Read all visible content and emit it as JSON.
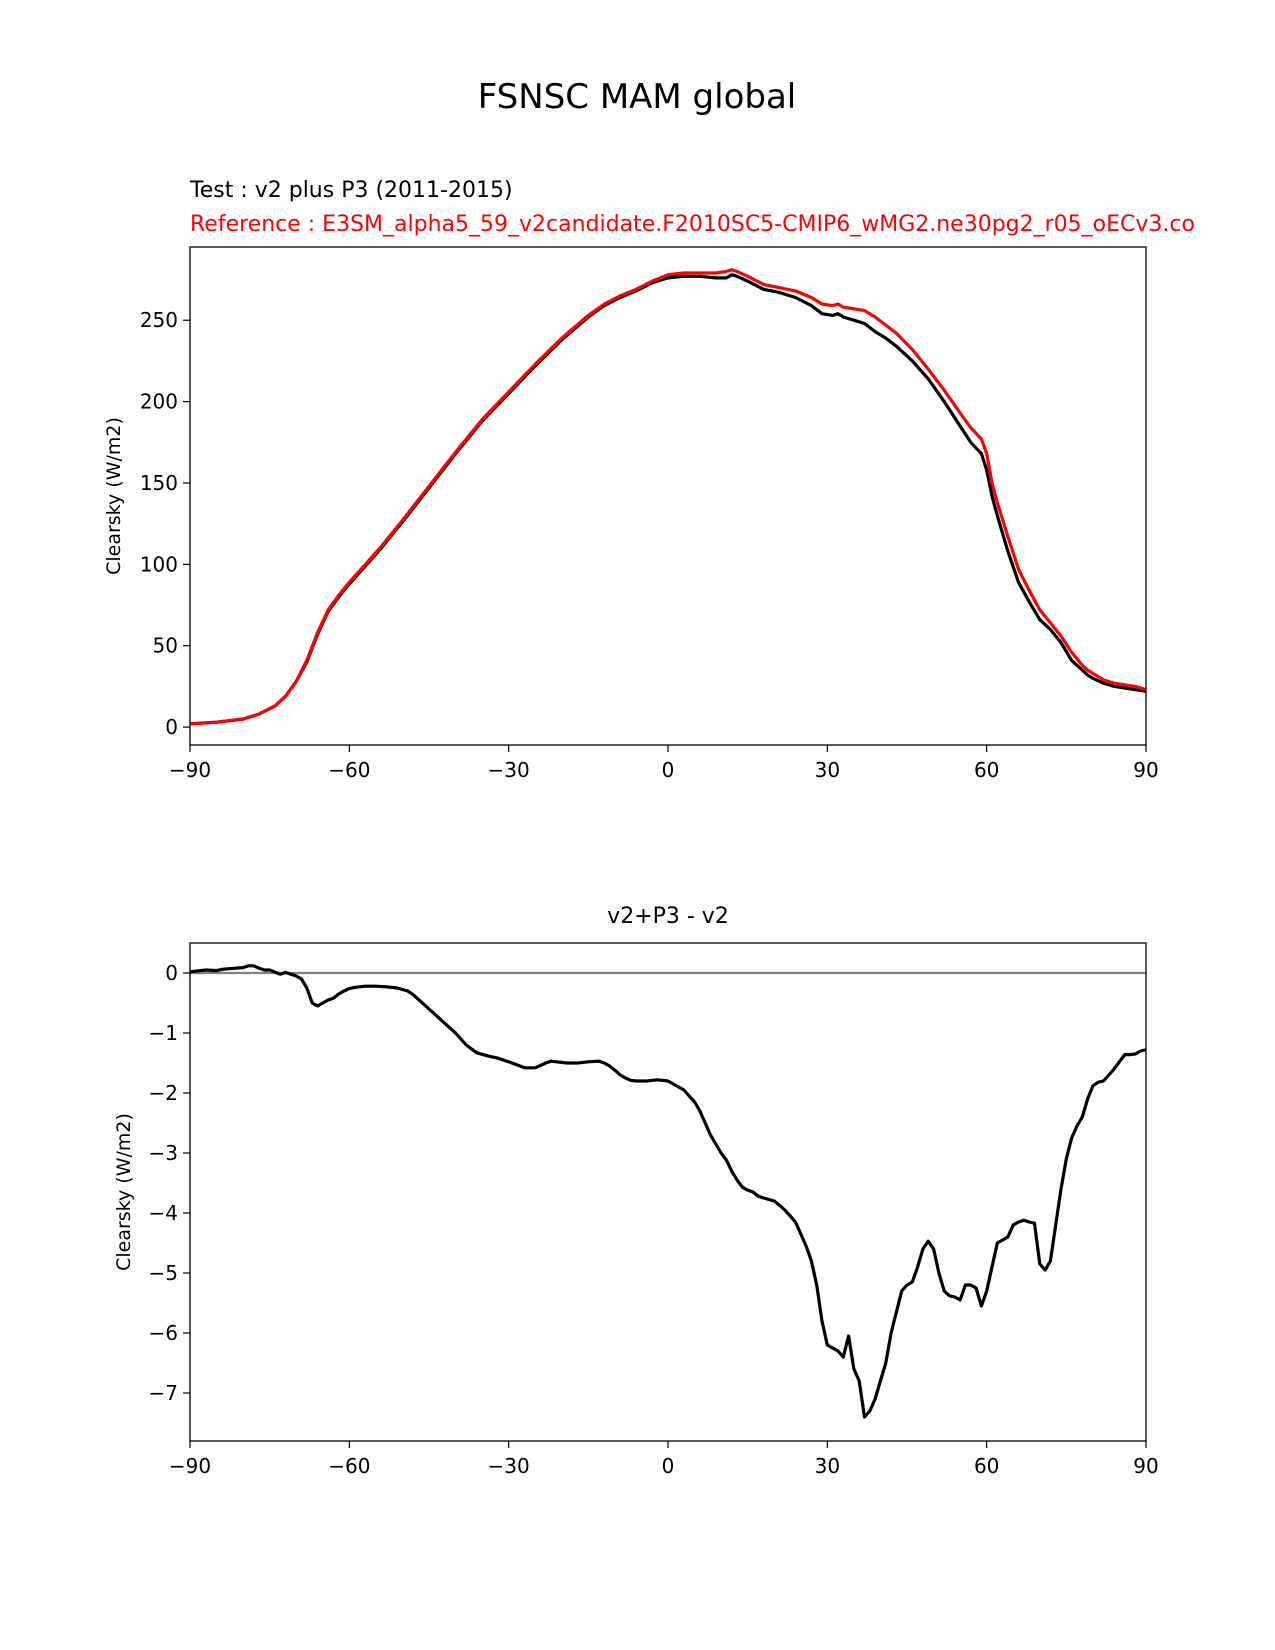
{
  "figure": {
    "suptitle": "FSNSC MAM global",
    "test_label": "Test : v2 plus P3 (2011-2015)",
    "reference_label": "Reference : E3SM_alpha5_59_v2candidate.F2010SC5-CMIP6_wMG2.ne30pg2_r05_oECv3.co",
    "colors": {
      "test": "#000000",
      "reference": "#ff0000",
      "zero_line": "#808080"
    }
  },
  "chart_data": [
    {
      "type": "line",
      "title": "",
      "xlabel": "",
      "ylabel": "Clearsky (W/m2)",
      "xlim": [
        -90,
        90
      ],
      "ylim": [
        -11,
        295
      ],
      "xticks": [
        -90,
        -60,
        -30,
        0,
        30,
        60,
        90
      ],
      "yticks": [
        0,
        50,
        100,
        150,
        200,
        250
      ],
      "x": [
        -90,
        -85,
        -80,
        -77,
        -74,
        -72,
        -70,
        -68,
        -66,
        -64,
        -62,
        -60,
        -57,
        -54,
        -50,
        -45,
        -40,
        -35,
        -30,
        -25,
        -20,
        -15,
        -12,
        -9,
        -6,
        -3,
        0,
        3,
        6,
        9,
        11,
        12,
        13,
        15,
        18,
        21,
        24,
        27,
        29,
        31,
        32,
        33,
        35,
        37,
        39,
        41,
        43,
        46,
        49,
        52,
        55,
        57,
        59,
        60,
        61,
        62,
        64,
        66,
        68,
        70,
        72,
        74,
        76,
        78,
        79,
        80,
        82,
        84,
        86,
        88,
        90
      ],
      "series": [
        {
          "name": "Test",
          "y": [
            2,
            3,
            5,
            8,
            13,
            19,
            28,
            40,
            57,
            71,
            80,
            88,
            99,
            110,
            126,
            147,
            168,
            188,
            205,
            222,
            238,
            252,
            259,
            264,
            268,
            273,
            276,
            277,
            277,
            276,
            276,
            278,
            277,
            274,
            269,
            267,
            264,
            259,
            254,
            253,
            254,
            252,
            250,
            248,
            243,
            239,
            234,
            225,
            214,
            200,
            185,
            175,
            168,
            158,
            142,
            130,
            108,
            89,
            77,
            66,
            60,
            52,
            41,
            35,
            32,
            30,
            27,
            25,
            24,
            23,
            22
          ]
        },
        {
          "name": "Reference",
          "y": [
            2,
            3,
            5,
            8,
            13,
            19,
            28,
            41,
            58,
            72,
            81,
            89,
            100,
            111,
            127,
            148,
            169,
            189,
            206,
            223,
            239,
            253,
            260,
            265,
            269,
            274,
            278,
            279,
            279,
            279,
            280,
            281,
            280,
            277,
            272,
            270,
            268,
            264,
            260,
            259,
            260,
            258,
            257,
            256,
            252,
            247,
            242,
            232,
            220,
            207,
            193,
            184,
            177,
            168,
            150,
            138,
            117,
            97,
            84,
            72,
            64,
            56,
            46,
            38,
            35,
            33,
            29,
            27,
            26,
            25,
            23
          ]
        }
      ]
    },
    {
      "type": "line",
      "title": "v2+P3 - v2",
      "xlabel": "",
      "ylabel": "Clearsky (W/m2)",
      "xlim": [
        -90,
        90
      ],
      "ylim": [
        -7.8,
        0.5
      ],
      "xticks": [
        -90,
        -60,
        -30,
        0,
        30,
        60,
        90
      ],
      "yticks": [
        0,
        -1,
        -2,
        -3,
        -4,
        -5,
        -6,
        -7
      ],
      "zero_line": 0,
      "x": [
        -90,
        -87,
        -85,
        -84,
        -83,
        -80,
        -79,
        -78,
        -77,
        -76,
        -75,
        -73,
        -72,
        -71,
        -70,
        -69,
        -68,
        -67,
        -66,
        -65,
        -64,
        -63,
        -62,
        -61,
        -60,
        -59,
        -58,
        -57,
        -55,
        -53,
        -51,
        -49,
        -48,
        -47,
        -46,
        -45,
        -44,
        -42,
        -40,
        -38,
        -36,
        -34,
        -32,
        -30,
        -27,
        -25,
        -23,
        -22,
        -21,
        -19,
        -18,
        -17,
        -15,
        -13,
        -12,
        -11,
        -10,
        -9,
        -8,
        -7,
        -6,
        -4,
        -2,
        -1,
        0,
        1,
        2,
        3,
        4,
        5,
        6,
        7,
        8,
        9,
        10,
        11,
        12,
        13,
        14,
        15,
        16,
        17,
        18,
        20,
        21,
        22,
        23,
        24,
        25,
        26,
        27,
        28,
        29,
        30,
        31,
        32,
        33,
        34,
        35,
        36,
        37,
        38,
        39,
        40,
        41,
        42,
        43,
        44,
        45,
        46,
        47,
        48,
        49,
        50,
        51,
        52,
        53,
        54,
        55,
        56,
        57,
        58,
        59,
        60,
        61,
        62,
        63,
        64,
        65,
        66,
        67,
        68,
        69,
        70,
        71,
        72,
        73,
        74,
        75,
        76,
        77,
        78,
        79,
        80,
        81,
        82,
        83,
        84,
        85,
        86,
        87,
        88,
        89,
        90
      ],
      "y": [
        0.02,
        0.05,
        0.04,
        0.06,
        0.07,
        0.09,
        0.12,
        0.12,
        0.08,
        0.05,
        0.05,
        -0.02,
        0.01,
        -0.02,
        -0.05,
        -0.1,
        -0.25,
        -0.5,
        -0.55,
        -0.5,
        -0.45,
        -0.42,
        -0.35,
        -0.3,
        -0.26,
        -0.24,
        -0.23,
        -0.22,
        -0.22,
        -0.23,
        -0.25,
        -0.3,
        -0.36,
        -0.44,
        -0.52,
        -0.6,
        -0.68,
        -0.84,
        -1.0,
        -1.2,
        -1.33,
        -1.38,
        -1.42,
        -1.48,
        -1.58,
        -1.58,
        -1.5,
        -1.47,
        -1.48,
        -1.5,
        -1.5,
        -1.5,
        -1.48,
        -1.47,
        -1.5,
        -1.55,
        -1.62,
        -1.7,
        -1.75,
        -1.79,
        -1.8,
        -1.8,
        -1.78,
        -1.79,
        -1.8,
        -1.85,
        -1.9,
        -1.95,
        -2.05,
        -2.15,
        -2.3,
        -2.5,
        -2.7,
        -2.85,
        -3.0,
        -3.12,
        -3.3,
        -3.45,
        -3.57,
        -3.62,
        -3.65,
        -3.72,
        -3.75,
        -3.8,
        -3.87,
        -3.95,
        -4.05,
        -4.15,
        -4.35,
        -4.55,
        -4.8,
        -5.2,
        -5.8,
        -6.2,
        -6.25,
        -6.3,
        -6.4,
        -6.05,
        -6.6,
        -6.8,
        -7.4,
        -7.3,
        -7.1,
        -6.8,
        -6.5,
        -6.0,
        -5.65,
        -5.3,
        -5.2,
        -5.15,
        -4.9,
        -4.6,
        -4.47,
        -4.6,
        -5.0,
        -5.3,
        -5.38,
        -5.4,
        -5.45,
        -5.2,
        -5.2,
        -5.25,
        -5.55,
        -5.3,
        -4.9,
        -4.5,
        -4.45,
        -4.4,
        -4.2,
        -4.15,
        -4.12,
        -4.15,
        -4.17,
        -4.85,
        -4.95,
        -4.8,
        -4.2,
        -3.6,
        -3.1,
        -2.75,
        -2.55,
        -2.4,
        -2.1,
        -1.88,
        -1.82,
        -1.8,
        -1.7,
        -1.6,
        -1.48,
        -1.36,
        -1.36,
        -1.35,
        -1.3,
        -1.28
      ]
    }
  ]
}
